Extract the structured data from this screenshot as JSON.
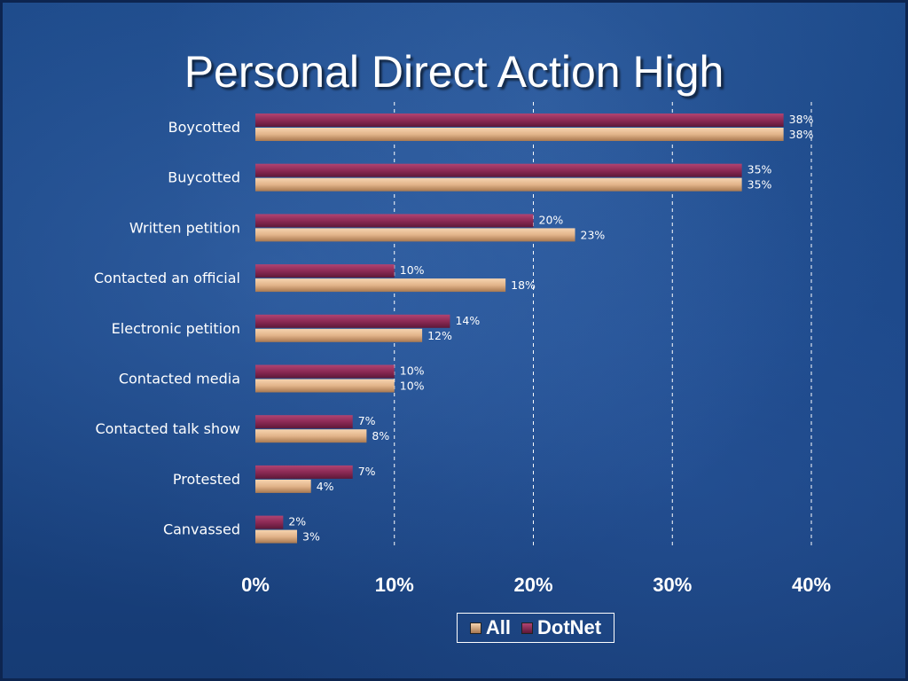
{
  "slide": {
    "title": "Personal Direct Action High"
  },
  "chart_data": {
    "type": "bar",
    "orientation": "horizontal",
    "title": "Personal Direct Action High",
    "categories": [
      "Boycotted",
      "Buycotted",
      "Written petition",
      "Contacted an official",
      "Electronic petition",
      "Contacted media",
      "Contacted talk show",
      "Protested",
      "Canvassed"
    ],
    "series": [
      {
        "name": "DotNet",
        "values": [
          38,
          35,
          20,
          10,
          14,
          10,
          7,
          7,
          2
        ],
        "color": "#8c2a55"
      },
      {
        "name": "All",
        "values": [
          38,
          35,
          23,
          18,
          12,
          10,
          8,
          4,
          3
        ],
        "color": "#e2b48a"
      }
    ],
    "xlim": [
      0,
      40
    ],
    "ticks": [
      0,
      10,
      20,
      30,
      40
    ],
    "tick_labels": [
      "0%",
      "10%",
      "20%",
      "30%",
      "40%"
    ],
    "value_suffix": "%",
    "grid": "vertical dashed",
    "legend_position": "bottom",
    "legend": [
      "All",
      "DotNet"
    ]
  },
  "legend": {
    "all_label": "All",
    "dotnet_label": "DotNet",
    "all_color": "#e2b48a",
    "dotnet_color": "#8c2a55"
  }
}
